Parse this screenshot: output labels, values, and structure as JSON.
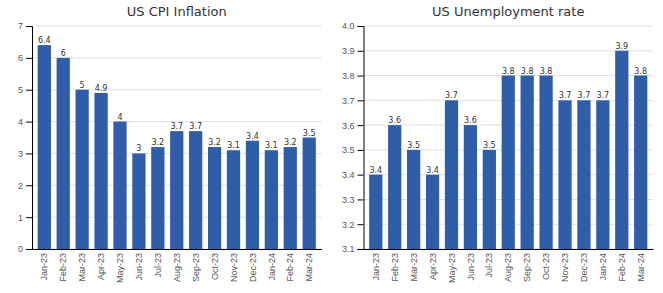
{
  "chart_data": [
    {
      "type": "bar",
      "title": "US CPI Inflation",
      "categories": [
        "Jan-23",
        "Feb-23",
        "Mar-23",
        "Apr-23",
        "May-23",
        "Jun-23",
        "Jul-23",
        "Aug-23",
        "Sep-23",
        "Oct-23",
        "Nov-23",
        "Dec-23",
        "Jan-24",
        "Feb-24",
        "Mar-24"
      ],
      "values": [
        6.4,
        6,
        5,
        4.9,
        4,
        3,
        3.2,
        3.7,
        3.7,
        3.2,
        3.1,
        3.4,
        3.1,
        3.2,
        3.5
      ],
      "color": "#2E5EA8",
      "ylim": [
        0,
        7
      ],
      "yticks": [
        0,
        1,
        2,
        3,
        4,
        5,
        6,
        7
      ],
      "grid": true,
      "data_labels": true
    },
    {
      "type": "bar",
      "title": "US Unemployment rate",
      "categories": [
        "Jan-23",
        "Feb-23",
        "Mar-23",
        "Apr-23",
        "May-23",
        "Jun-23",
        "Jul-23",
        "Aug-23",
        "Sep-23",
        "Oct-23",
        "Nov-23",
        "Dec-23",
        "Jan-24",
        "Feb-24",
        "Mar-24"
      ],
      "values": [
        3.4,
        3.6,
        3.5,
        3.4,
        3.7,
        3.6,
        3.5,
        3.8,
        3.8,
        3.8,
        3.7,
        3.7,
        3.7,
        3.9,
        3.8
      ],
      "color": "#2E5EA8",
      "ylim": [
        3.1,
        4.0
      ],
      "yticks": [
        3.1,
        3.2,
        3.3,
        3.4,
        3.5,
        3.6,
        3.7,
        3.8,
        3.9,
        {
          "value": 4.0,
          "label": "4.0"
        }
      ],
      "grid": true,
      "data_labels": true
    }
  ]
}
